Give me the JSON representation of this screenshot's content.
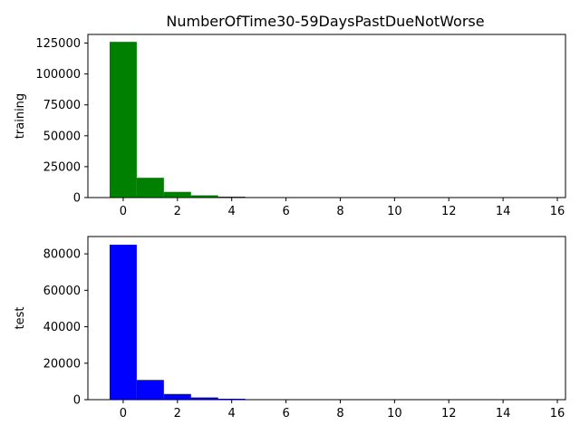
{
  "title": "NumberOfTime30-59DaysPastDueNotWorse",
  "chart_data": [
    {
      "type": "bar",
      "ylabel": "training",
      "color": "#008000",
      "xlim": [
        -1.3,
        16.3
      ],
      "ylim": [
        0,
        132000
      ],
      "xticks": [
        "0",
        "2",
        "4",
        "6",
        "8",
        "10",
        "12",
        "14",
        "16"
      ],
      "yticks": [
        "0",
        "25000",
        "50000",
        "75000",
        "100000",
        "125000"
      ],
      "categories": [
        0,
        1,
        2,
        3,
        4,
        5,
        6,
        7,
        8,
        9,
        10,
        11,
        12,
        13,
        14,
        15
      ],
      "values": [
        126000,
        16000,
        4600,
        1800,
        750,
        340,
        140,
        55,
        25,
        12,
        4,
        2,
        1,
        1,
        0,
        0
      ]
    },
    {
      "type": "bar",
      "ylabel": "test",
      "color": "#0000ff",
      "xlim": [
        -1.3,
        16.3
      ],
      "ylim": [
        0,
        89500
      ],
      "xticks": [
        "0",
        "2",
        "4",
        "6",
        "8",
        "10",
        "12",
        "14",
        "16"
      ],
      "yticks": [
        "0",
        "20000",
        "40000",
        "60000",
        "80000"
      ],
      "categories": [
        0,
        1,
        2,
        3,
        4,
        5,
        6,
        7,
        8,
        9,
        10,
        11,
        12,
        13,
        14,
        15
      ],
      "values": [
        85000,
        10800,
        3100,
        1200,
        500,
        220,
        90,
        40,
        15,
        8,
        3,
        1,
        1,
        0,
        0,
        0
      ]
    }
  ]
}
